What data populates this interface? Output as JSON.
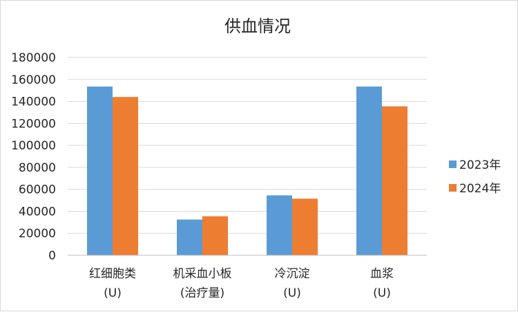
{
  "chart_data": {
    "type": "bar",
    "title": "供血情况",
    "categories": [
      [
        "红细胞类",
        "(U)"
      ],
      [
        "机采血小板",
        "(治疗量)"
      ],
      [
        "冷沉淀",
        "(U)"
      ],
      [
        "血浆",
        "(U)"
      ]
    ],
    "series": [
      {
        "name": "2023年",
        "color": "#5b9bd5",
        "values": [
          153500,
          32500,
          54500,
          153500
        ]
      },
      {
        "name": "2024年",
        "color": "#ed7d31",
        "values": [
          144000,
          35500,
          51500,
          135500
        ]
      }
    ],
    "ylim": [
      0,
      180000
    ],
    "yticks": [
      0,
      20000,
      40000,
      60000,
      80000,
      100000,
      120000,
      140000,
      160000,
      180000
    ],
    "grid": true,
    "legend": "right"
  }
}
